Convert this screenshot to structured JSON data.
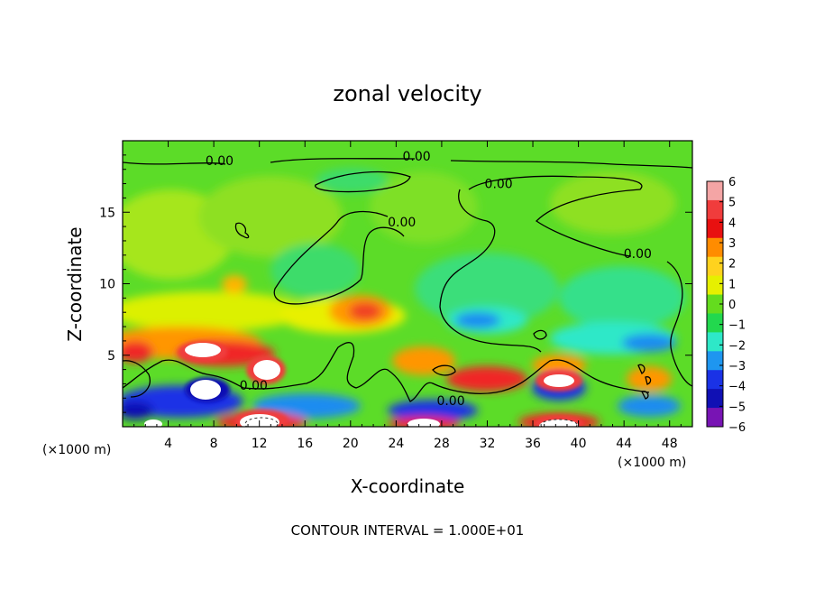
{
  "chart_data": {
    "type": "heatmap",
    "title": "zonal velocity",
    "xlabel": "X-coordinate",
    "ylabel": "Z-coordinate",
    "x_unit_left": "(×1000 m)",
    "x_unit_right": "(×1000 m)",
    "xlim": [
      0,
      50
    ],
    "ylim": [
      0,
      20
    ],
    "x_ticks": [
      4,
      8,
      12,
      16,
      20,
      24,
      28,
      32,
      36,
      40,
      44,
      48
    ],
    "y_ticks": [
      5,
      10,
      15
    ],
    "x_tick_labels": [
      "4",
      "8",
      "12",
      "16",
      "20",
      "24",
      "28",
      "32",
      "36",
      "40",
      "44",
      "48"
    ],
    "y_tick_labels": [
      "5",
      "10",
      "15"
    ],
    "colorbar": {
      "levels": [
        6,
        5,
        4,
        3,
        2,
        1,
        0,
        -1,
        -2,
        -3,
        -4,
        -5,
        -6
      ],
      "labels": [
        "6",
        "5",
        "4",
        "3",
        "2",
        "1",
        "0",
        "−1",
        "−2",
        "−3",
        "−4",
        "−5",
        "−6"
      ],
      "colors": [
        "#f4a5a5",
        "#f03c3c",
        "#e81010",
        "#ff8c00",
        "#ffd21e",
        "#e6f000",
        "#64dc1e",
        "#22d84e",
        "#2ee8c8",
        "#1e96f0",
        "#1a32e6",
        "#1010b4",
        "#7814b4"
      ]
    },
    "contour_labels": [
      {
        "text": "0.00",
        "x": 8.5,
        "z": 18.3
      },
      {
        "text": "0.00",
        "x": 25.8,
        "z": 18.6
      },
      {
        "text": "0.00",
        "x": 33.0,
        "z": 16.7
      },
      {
        "text": "0.00",
        "x": 24.5,
        "z": 14.0
      },
      {
        "text": "0.00",
        "x": 45.2,
        "z": 11.8
      },
      {
        "text": "0.00",
        "x": 11.5,
        "z": 2.6
      },
      {
        "text": "0.00",
        "x": 28.8,
        "z": 1.5
      }
    ],
    "footer": "CONTOUR INTERVAL = 1.000E+01"
  }
}
